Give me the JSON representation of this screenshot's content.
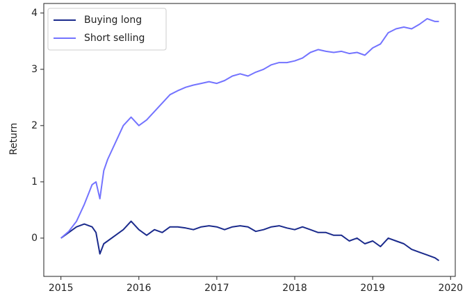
{
  "chart_data": {
    "type": "line",
    "y_label": "Return",
    "x": [
      2015.0,
      2015.1,
      2015.2,
      2015.3,
      2015.4,
      2015.45,
      2015.5,
      2015.55,
      2015.6,
      2015.7,
      2015.8,
      2015.9,
      2016.0,
      2016.1,
      2016.2,
      2016.3,
      2016.4,
      2016.5,
      2016.6,
      2016.7,
      2016.8,
      2016.9,
      2017.0,
      2017.1,
      2017.2,
      2017.3,
      2017.4,
      2017.5,
      2017.6,
      2017.7,
      2017.8,
      2017.9,
      2018.0,
      2018.1,
      2018.2,
      2018.3,
      2018.4,
      2018.5,
      2018.6,
      2018.7,
      2018.8,
      2018.9,
      2019.0,
      2019.1,
      2019.2,
      2019.3,
      2019.4,
      2019.5,
      2019.6,
      2019.7,
      2019.8,
      2019.85
    ],
    "series": [
      {
        "name": "Buying long",
        "color": "#1a2a8c",
        "values": [
          0,
          0.1,
          0.2,
          0.25,
          0.2,
          0.1,
          -0.28,
          -0.1,
          -0.05,
          0.05,
          0.15,
          0.3,
          0.15,
          0.05,
          0.15,
          0.1,
          0.2,
          0.2,
          0.18,
          0.15,
          0.2,
          0.22,
          0.2,
          0.15,
          0.2,
          0.22,
          0.2,
          0.12,
          0.15,
          0.2,
          0.22,
          0.18,
          0.15,
          0.2,
          0.15,
          0.1,
          0.1,
          0.05,
          0.05,
          -0.05,
          0.0,
          -0.1,
          -0.05,
          -0.15,
          0.0,
          -0.05,
          -0.1,
          -0.2,
          -0.25,
          -0.3,
          -0.35,
          -0.4
        ]
      },
      {
        "name": "Short selling",
        "color": "#7373ff",
        "values": [
          0,
          0.12,
          0.3,
          0.6,
          0.95,
          1.0,
          0.7,
          1.2,
          1.4,
          1.7,
          2.0,
          2.15,
          2.0,
          2.1,
          2.25,
          2.4,
          2.55,
          2.62,
          2.68,
          2.72,
          2.75,
          2.78,
          2.75,
          2.8,
          2.88,
          2.92,
          2.88,
          2.95,
          3.0,
          3.08,
          3.12,
          3.12,
          3.15,
          3.2,
          3.3,
          3.35,
          3.32,
          3.3,
          3.32,
          3.28,
          3.3,
          3.25,
          3.38,
          3.45,
          3.65,
          3.72,
          3.75,
          3.72,
          3.8,
          3.9,
          3.85,
          3.85
        ]
      }
    ],
    "xlim": [
      2014.78,
      2020.06
    ],
    "xticks": [
      2015,
      2016,
      2017,
      2018,
      2019,
      2020
    ],
    "ylim": [
      -0.68,
      4.17
    ],
    "yticks": [
      0,
      1,
      2,
      3,
      4
    ],
    "legend": "upper left"
  }
}
